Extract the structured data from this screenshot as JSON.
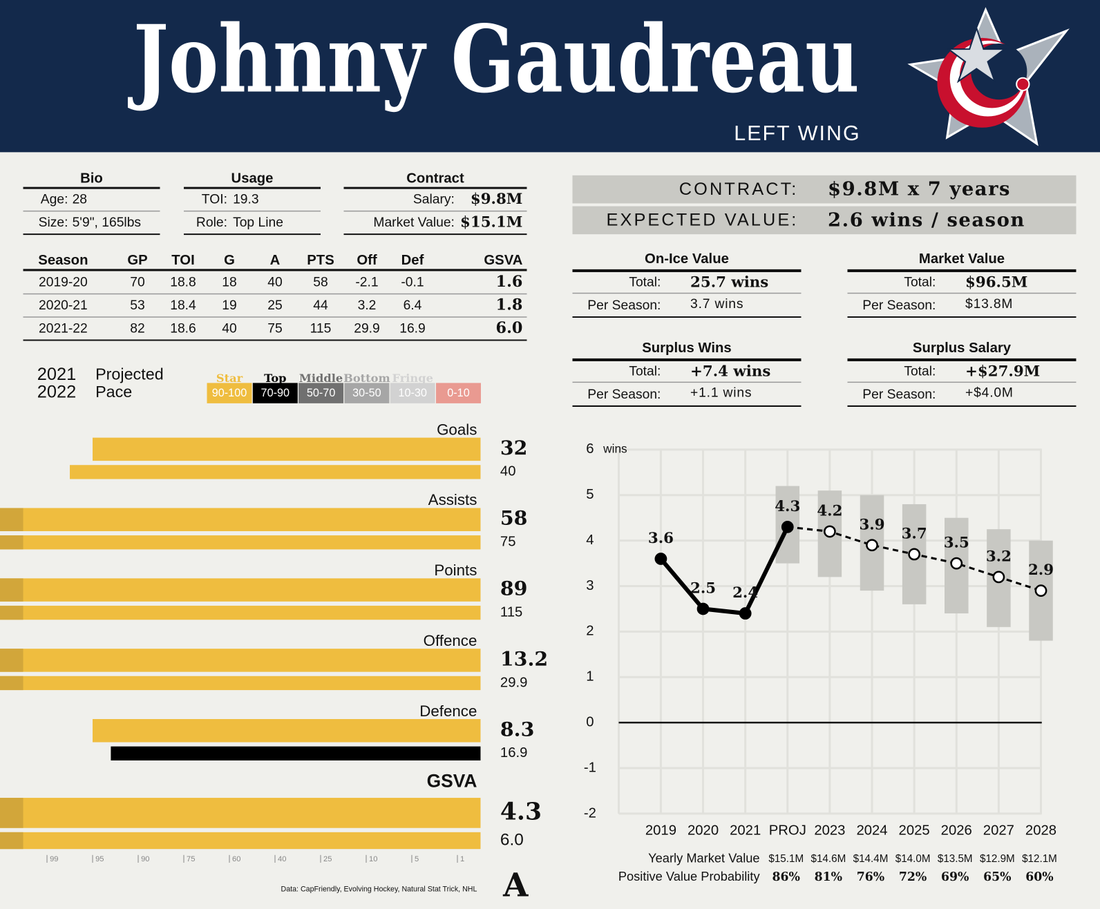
{
  "header": {
    "name": "Johnny Gaudreau",
    "position": "LEFT WING"
  },
  "bio": {
    "title": "Bio",
    "rows": [
      [
        "Age:",
        "28"
      ],
      [
        "Size:",
        "5'9\", 165lbs"
      ]
    ]
  },
  "usage": {
    "title": "Usage",
    "rows": [
      [
        "TOI:",
        "19.3"
      ],
      [
        "Role:",
        "Top Line"
      ]
    ]
  },
  "contract": {
    "title": "Contract",
    "rows": [
      [
        "Salary:",
        "$9.8M"
      ],
      [
        "Market Value:",
        "$15.1M"
      ]
    ]
  },
  "stats": {
    "columns": [
      "Season",
      "GP",
      "TOI",
      "G",
      "A",
      "PTS",
      "Off",
      "Def",
      "GSVA"
    ],
    "rows": [
      [
        "2019-20",
        "70",
        "18.8",
        "18",
        "40",
        "58",
        "-2.1",
        "-0.1",
        "1.6"
      ],
      [
        "2020-21",
        "53",
        "18.4",
        "19",
        "25",
        "44",
        "3.2",
        "6.4",
        "1.8"
      ],
      [
        "2021-22",
        "82",
        "18.6",
        "40",
        "75",
        "115",
        "29.9",
        "16.9",
        "6.0"
      ]
    ]
  },
  "summary": [
    {
      "label": "CONTRACT:",
      "value": "$9.8M x 7 years"
    },
    {
      "label": "EXPECTED VALUE:",
      "value": "2.6 wins / season"
    }
  ],
  "value_tables": [
    {
      "title": "On-Ice Value",
      "rows": [
        [
          "Total:",
          "25.7 wins"
        ],
        [
          "Per Season:",
          "3.7 wins"
        ]
      ]
    },
    {
      "title": "Market Value",
      "rows": [
        [
          "Total:",
          "$96.5M"
        ],
        [
          "Per Season:",
          "$13.8M"
        ]
      ]
    },
    {
      "title": "Surplus Wins",
      "rows": [
        [
          "Total:",
          "+7.4 wins"
        ],
        [
          "Per Season:",
          "+1.1 wins"
        ]
      ]
    },
    {
      "title": "Surplus Salary",
      "rows": [
        [
          "Total:",
          "+$27.9M"
        ],
        [
          "Per Season:",
          "+$4.0M"
        ]
      ]
    }
  ],
  "legend": {
    "years": [
      "2021",
      "2022"
    ],
    "caption": [
      "Projected",
      "Pace"
    ],
    "tiers": [
      {
        "name": "Star",
        "range": "90-100",
        "color": "#efbd3f"
      },
      {
        "name": "Top",
        "range": "70-90",
        "color": "#000000"
      },
      {
        "name": "Middle",
        "range": "50-70",
        "color": "#707070"
      },
      {
        "name": "Bottom",
        "range": "30-50",
        "color": "#a6a6a6"
      },
      {
        "name": "Fringe",
        "range": "10-30",
        "color": "#d2d2d2"
      },
      {
        "name": "",
        "range": "0-10",
        "color": "#e99a91"
      }
    ]
  },
  "chart_data": [
    {
      "type": "pace_bar",
      "categories": [
        "Goals",
        "Assists",
        "Points",
        "Offence",
        "Defence",
        "GSVA"
      ],
      "xlim": [
        100,
        0
      ],
      "xticks": [
        99,
        95,
        90,
        75,
        60,
        40,
        25,
        10,
        5,
        1
      ],
      "series": [
        {
          "values": [
            95,
            100,
            100,
            100,
            95,
            100
          ],
          "colors": [
            "#efbd3f",
            "#efbd3f",
            "#efbd3f",
            "#efbd3f",
            "#efbd3f",
            "#efbd3f"
          ],
          "stats": [
            "32",
            "58",
            "89",
            "13.2",
            "8.3",
            "4.3"
          ]
        },
        {
          "values": [
            97,
            100,
            100,
            100,
            93,
            100
          ],
          "colors": [
            "#efbd3f",
            "#efbd3f",
            "#efbd3f",
            "#efbd3f",
            "#000000",
            "#efbd3f"
          ],
          "stats": [
            "40",
            "75",
            "115",
            "29.9",
            "16.9",
            "6.0"
          ]
        }
      ]
    },
    {
      "type": "line",
      "y_unit": "wins",
      "categories": [
        "2019",
        "2020",
        "2021",
        "PROJ",
        "2023",
        "2024",
        "2025",
        "2026",
        "2027",
        "2028"
      ],
      "ylim": [
        -2,
        6
      ],
      "yticks": [
        -2,
        -1,
        0,
        1,
        2,
        3,
        4,
        5,
        6
      ],
      "grid": true,
      "series": [
        {
          "color": "#000000",
          "style": "solid",
          "values": [
            3.6,
            2.5,
            2.4,
            4.3,
            null,
            null,
            null,
            null,
            null,
            null
          ]
        },
        {
          "color": "#000000",
          "style": "dashed",
          "values": [
            null,
            null,
            null,
            4.3,
            4.2,
            3.9,
            3.7,
            3.5,
            3.2,
            2.9
          ]
        }
      ],
      "range_low": [
        null,
        null,
        null,
        3.5,
        3.2,
        2.9,
        2.6,
        2.4,
        2.1,
        1.8
      ],
      "range_high": [
        null,
        null,
        null,
        5.2,
        5.1,
        5.0,
        4.8,
        4.5,
        4.25,
        4.0
      ],
      "range_color": "#c8c8c3",
      "footer_rows": [
        {
          "label": "Yearly Market Value",
          "values": [
            "$15.1M",
            "$14.6M",
            "$14.4M",
            "$14.0M",
            "$13.5M",
            "$12.9M",
            "$12.1M"
          ]
        },
        {
          "label": "Positive Value Probability",
          "values": [
            "86%",
            "81%",
            "76%",
            "72%",
            "69%",
            "65%",
            "60%"
          ]
        }
      ]
    }
  ],
  "source": "Data: CapFriendly, Evolving Hockey, Natural Stat Trick, NHL",
  "brand": "A"
}
